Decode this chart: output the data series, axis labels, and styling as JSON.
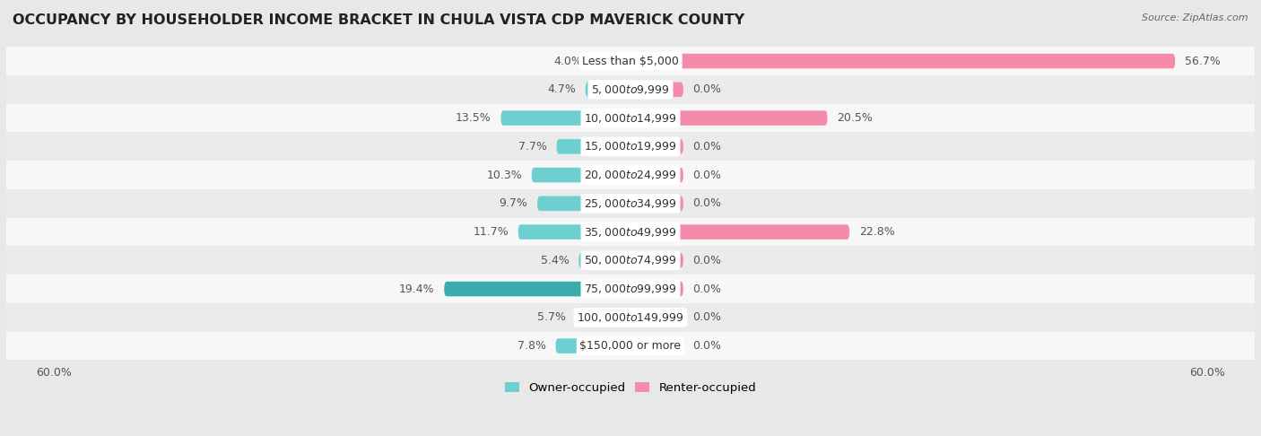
{
  "title": "OCCUPANCY BY HOUSEHOLDER INCOME BRACKET IN CHULA VISTA CDP MAVERICK COUNTY",
  "source": "Source: ZipAtlas.com",
  "categories": [
    "Less than $5,000",
    "$5,000 to $9,999",
    "$10,000 to $14,999",
    "$15,000 to $19,999",
    "$20,000 to $24,999",
    "$25,000 to $34,999",
    "$35,000 to $49,999",
    "$50,000 to $74,999",
    "$75,000 to $99,999",
    "$100,000 to $149,999",
    "$150,000 or more"
  ],
  "owner_values": [
    4.0,
    4.7,
    13.5,
    7.7,
    10.3,
    9.7,
    11.7,
    5.4,
    19.4,
    5.7,
    7.8
  ],
  "renter_values": [
    56.7,
    0.0,
    20.5,
    0.0,
    0.0,
    0.0,
    22.8,
    0.0,
    0.0,
    0.0,
    0.0
  ],
  "owner_label": [
    " 4.0%",
    " 4.7%",
    "13.5%",
    " 7.7%",
    "10.3%",
    " 9.7%",
    "11.7%",
    " 5.4%",
    "19.4%",
    " 5.7%",
    " 7.8%"
  ],
  "renter_label": [
    "56.7%",
    "0.0%",
    "20.5%",
    "0.0%",
    "0.0%",
    "0.0%",
    "22.8%",
    "0.0%",
    "0.0%",
    "0.0%",
    "0.0%"
  ],
  "owner_color_light": "#6DCFCF",
  "owner_color_dark": "#3AACAC",
  "renter_color": "#F48BAB",
  "bg_row_white": "#f7f7f7",
  "bg_row_gray": "#ebebeb",
  "bg_overall": "#e8e8e8",
  "xlim": 60.0,
  "bar_height": 0.52,
  "small_renter": 5.5,
  "label_fontsize": 9.0,
  "title_fontsize": 11.5,
  "category_fontsize": 9.0
}
